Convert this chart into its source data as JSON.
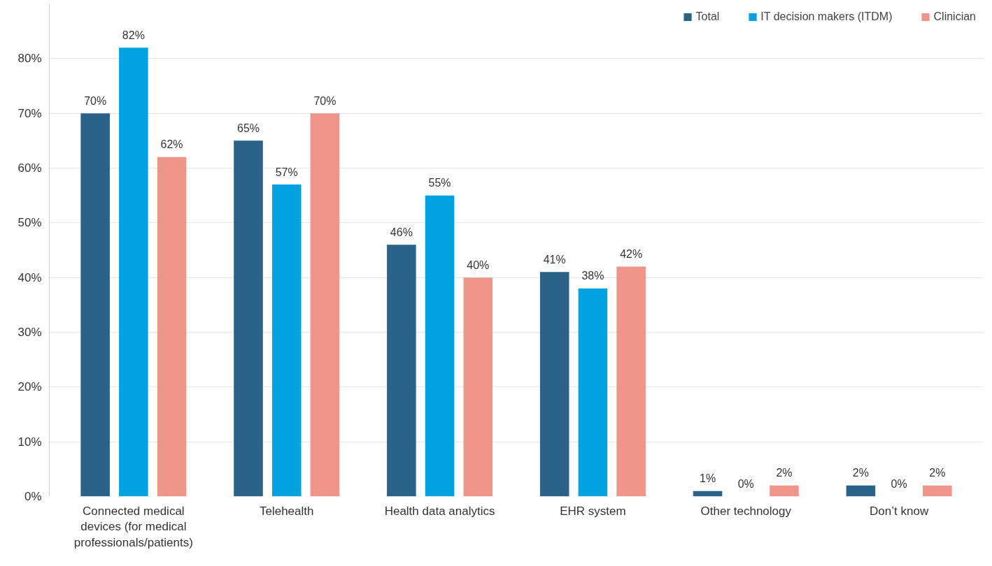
{
  "chart_data": {
    "type": "bar",
    "categories": [
      "Connected medical\ndevices (for medical\nprofessionals/patients)",
      "Telehealth",
      "Health data analytics",
      "EHR system",
      "Other technology",
      "Don’t know"
    ],
    "series": [
      {
        "name": "Total",
        "color": "#2a6289",
        "values": [
          70,
          65,
          46,
          41,
          1,
          2
        ],
        "value_labels": [
          "70%",
          "65%",
          "46%",
          "41%",
          "1%",
          "2%"
        ]
      },
      {
        "name": "IT decision makers (ITDM)",
        "color": "#00a3e0",
        "values": [
          82,
          57,
          55,
          38,
          0,
          0
        ],
        "value_labels": [
          "82%",
          "57%",
          "55%",
          "38%",
          "0%",
          "0%"
        ]
      },
      {
        "name": "Clinician",
        "color": "#f0958a",
        "values": [
          62,
          70,
          40,
          42,
          2,
          2
        ],
        "value_labels": [
          "62%",
          "70%",
          "40%",
          "42%",
          "2%",
          "2%"
        ]
      }
    ],
    "ylim": [
      0,
      90
    ],
    "yticks": [
      {
        "value": 0,
        "label": "0%"
      },
      {
        "value": 10,
        "label": "10%"
      },
      {
        "value": 20,
        "label": "20%"
      },
      {
        "value": 30,
        "label": "30%"
      },
      {
        "value": 40,
        "label": "40%"
      },
      {
        "value": 50,
        "label": "50%"
      },
      {
        "value": 60,
        "label": "60%"
      },
      {
        "value": 70,
        "label": "70%"
      },
      {
        "value": 80,
        "label": "80%"
      }
    ],
    "grid": "y",
    "legend": "top right"
  }
}
